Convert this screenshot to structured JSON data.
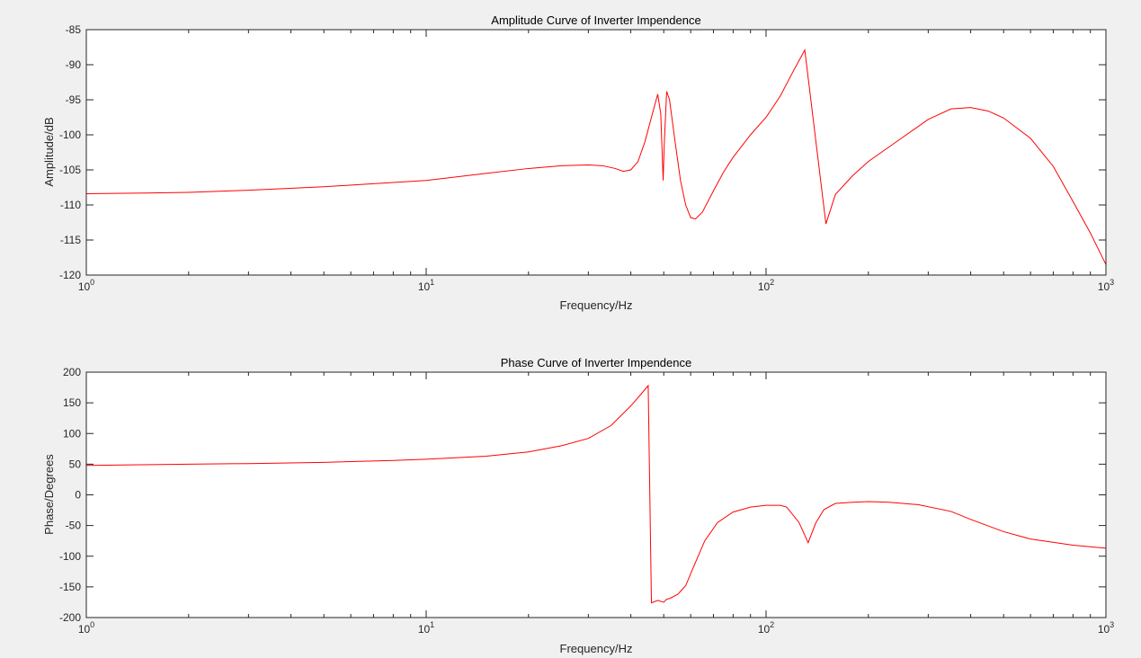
{
  "colors": {
    "background": "#f0f0f0",
    "axes_face": "#ffffff",
    "axis": "#262626",
    "curve": "#ff0000"
  },
  "chart_data": [
    {
      "type": "line",
      "title": "Amplitude Curve of Inverter Impendence",
      "xlabel": "Frequency/Hz",
      "ylabel": "Amplitude/dB",
      "xscale": "log",
      "xlim": [
        1,
        1000
      ],
      "ylim": [
        -120,
        -85
      ],
      "xticks": [
        1,
        10,
        100,
        1000
      ],
      "xtick_labels": [
        {
          "base": "10",
          "exp": "0"
        },
        {
          "base": "10",
          "exp": "1"
        },
        {
          "base": "10",
          "exp": "2"
        },
        {
          "base": "10",
          "exp": "3"
        }
      ],
      "yticks": [
        -120,
        -115,
        -110,
        -105,
        -100,
        -95,
        -90,
        -85
      ],
      "ytick_labels": [
        "-120",
        "-115",
        "-110",
        "-105",
        "-100",
        "-95",
        "-90",
        "-85"
      ],
      "grid": false,
      "series": [
        {
          "color": "#ff0000",
          "x": [
            1,
            1.5,
            2,
            3,
            5,
            8,
            10,
            15,
            20,
            25,
            30,
            33,
            36,
            38,
            40,
            42,
            44,
            46,
            48,
            49,
            49.8,
            50.2,
            51,
            52,
            54,
            56,
            58,
            60,
            62,
            65,
            70,
            75,
            80,
            90,
            100,
            110,
            120,
            130,
            150,
            160,
            180,
            200,
            250,
            300,
            350,
            400,
            450,
            500,
            600,
            700,
            800,
            900,
            1000
          ],
          "y": [
            -108.4,
            -108.3,
            -108.2,
            -107.9,
            -107.4,
            -106.8,
            -106.5,
            -105.5,
            -104.8,
            -104.4,
            -104.3,
            -104.4,
            -104.8,
            -105.2,
            -105.0,
            -103.8,
            -101.0,
            -97.5,
            -94.2,
            -97.0,
            -106.5,
            -101.0,
            -93.8,
            -95.0,
            -101.0,
            -106.5,
            -110.0,
            -111.8,
            -112.0,
            -111.0,
            -108.0,
            -105.3,
            -103.2,
            -100.0,
            -97.5,
            -94.5,
            -91.0,
            -87.9,
            -112.7,
            -108.5,
            -105.8,
            -103.8,
            -100.5,
            -97.8,
            -96.3,
            -96.1,
            -96.6,
            -97.6,
            -100.5,
            -104.5,
            -109.5,
            -114.0,
            -118.5
          ]
        }
      ]
    },
    {
      "type": "line",
      "title": "Phase Curve of Inverter Impendence",
      "xlabel": "Frequency/Hz",
      "ylabel": "Phase/Degrees",
      "xscale": "log",
      "xlim": [
        1,
        1000
      ],
      "ylim": [
        -200,
        200
      ],
      "xticks": [
        1,
        10,
        100,
        1000
      ],
      "xtick_labels": [
        {
          "base": "10",
          "exp": "0"
        },
        {
          "base": "10",
          "exp": "1"
        },
        {
          "base": "10",
          "exp": "2"
        },
        {
          "base": "10",
          "exp": "3"
        }
      ],
      "yticks": [
        -200,
        -150,
        -100,
        -50,
        0,
        50,
        100,
        150,
        200
      ],
      "ytick_labels": [
        "-200",
        "-150",
        "-100",
        "-50",
        "0",
        "50",
        "100",
        "150",
        "200"
      ],
      "grid": false,
      "series": [
        {
          "color": "#ff0000",
          "x": [
            1,
            2,
            3,
            5,
            8,
            10,
            15,
            20,
            25,
            30,
            35,
            40,
            43,
            45,
            46,
            48,
            50,
            51,
            52,
            55,
            58,
            62,
            66,
            72,
            80,
            90,
            100,
            110,
            115,
            125,
            133,
            140,
            148,
            160,
            180,
            200,
            230,
            280,
            350,
            400,
            500,
            600,
            800,
            1000
          ],
          "y": [
            48,
            50,
            51,
            53,
            56,
            58,
            63,
            70,
            80,
            92,
            113,
            145,
            165,
            178,
            -176,
            -172,
            -175,
            -170,
            -169,
            -162,
            -148,
            -110,
            -75,
            -45,
            -28,
            -20,
            -17,
            -17,
            -20,
            -45,
            -78,
            -46,
            -24,
            -14,
            -12,
            -11,
            -12,
            -16,
            -27,
            -40,
            -60,
            -72,
            -82,
            -87
          ]
        }
      ]
    }
  ]
}
